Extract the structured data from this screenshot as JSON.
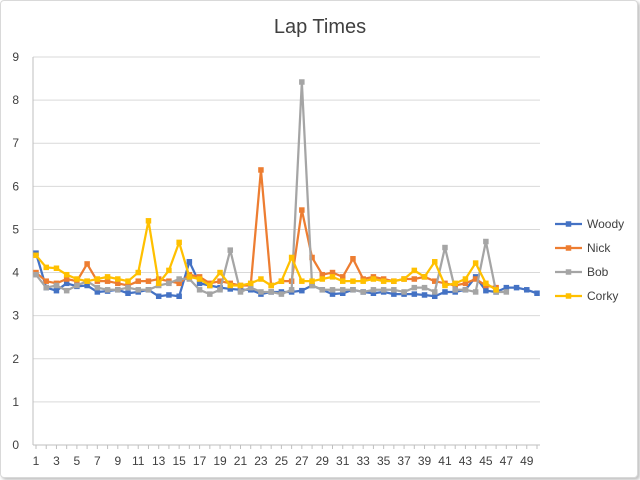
{
  "chart_data": {
    "type": "line",
    "title": "Lap Times",
    "xlabel": "",
    "ylabel": "",
    "ylim": [
      0,
      9
    ],
    "yticks": [
      0,
      1,
      2,
      3,
      4,
      5,
      6,
      7,
      8,
      9
    ],
    "xtick_labels": [
      "1",
      "3",
      "5",
      "7",
      "9",
      "11",
      "13",
      "15",
      "17",
      "19",
      "21",
      "23",
      "25",
      "27",
      "29",
      "31",
      "33",
      "35",
      "37",
      "39",
      "41",
      "43",
      "45",
      "47",
      "49"
    ],
    "grid": "horizontal",
    "legend_position": "right",
    "x": [
      1,
      2,
      3,
      4,
      5,
      6,
      7,
      8,
      9,
      10,
      11,
      12,
      13,
      14,
      15,
      16,
      17,
      18,
      19,
      20,
      21,
      22,
      23,
      24,
      25,
      26,
      27,
      28,
      29,
      30,
      31,
      32,
      33,
      34,
      35,
      36,
      37,
      38,
      39,
      40,
      41,
      42,
      43,
      44,
      45,
      46,
      47,
      48,
      49,
      50
    ],
    "series": [
      {
        "name": "Woody",
        "color": "#4472C4",
        "marker": "square",
        "values": [
          4.45,
          3.65,
          3.58,
          3.75,
          3.68,
          3.7,
          3.55,
          3.57,
          3.6,
          3.52,
          3.55,
          3.6,
          3.45,
          3.48,
          3.45,
          4.25,
          3.75,
          3.7,
          3.65,
          3.62,
          3.6,
          3.6,
          3.5,
          3.55,
          3.55,
          3.55,
          3.58,
          3.7,
          3.6,
          3.5,
          3.52,
          3.6,
          3.55,
          3.52,
          3.55,
          3.5,
          3.5,
          3.5,
          3.48,
          3.45,
          3.55,
          3.55,
          3.6,
          3.9,
          3.58,
          3.55,
          3.65,
          3.65,
          3.6,
          3.52
        ]
      },
      {
        "name": "Nick",
        "color": "#ED7D31",
        "marker": "square",
        "values": [
          4.0,
          3.8,
          3.75,
          3.85,
          3.8,
          4.2,
          3.8,
          3.8,
          3.75,
          3.7,
          3.8,
          3.8,
          3.85,
          3.8,
          3.75,
          3.95,
          3.9,
          3.75,
          3.8,
          3.75,
          3.7,
          3.7,
          6.38,
          3.7,
          3.8,
          3.8,
          5.45,
          4.35,
          3.95,
          4.0,
          3.9,
          4.32,
          3.85,
          3.9,
          3.85,
          3.8,
          3.85,
          3.85,
          3.9,
          3.8,
          3.75,
          3.7,
          3.75,
          3.85,
          3.7,
          3.65,
          null,
          null,
          null,
          null
        ]
      },
      {
        "name": "Bob",
        "color": "#A5A5A5",
        "marker": "square",
        "values": [
          3.95,
          3.65,
          3.7,
          3.58,
          3.7,
          3.8,
          3.65,
          3.6,
          3.6,
          3.65,
          3.6,
          3.6,
          3.7,
          3.75,
          3.85,
          3.85,
          3.6,
          3.5,
          3.6,
          4.52,
          3.55,
          3.65,
          3.55,
          3.55,
          3.5,
          3.6,
          8.42,
          3.7,
          3.6,
          3.6,
          3.6,
          3.6,
          3.55,
          3.6,
          3.6,
          3.6,
          3.55,
          3.65,
          3.65,
          3.55,
          4.58,
          3.6,
          3.6,
          3.55,
          4.72,
          3.55,
          3.55,
          null,
          null,
          null
        ]
      },
      {
        "name": "Corky",
        "color": "#FFC000",
        "marker": "square",
        "values": [
          4.4,
          4.12,
          4.1,
          3.95,
          3.85,
          3.8,
          3.85,
          3.9,
          3.85,
          3.8,
          4.0,
          5.2,
          3.75,
          4.05,
          4.7,
          3.9,
          3.85,
          3.7,
          4.0,
          3.7,
          3.7,
          3.75,
          3.85,
          3.7,
          3.8,
          4.35,
          3.8,
          3.8,
          3.85,
          3.9,
          3.8,
          3.8,
          3.8,
          3.85,
          3.8,
          3.8,
          3.85,
          4.05,
          3.9,
          4.25,
          3.7,
          3.75,
          3.85,
          4.22,
          3.75,
          3.6,
          null,
          null,
          null,
          null
        ]
      }
    ]
  }
}
